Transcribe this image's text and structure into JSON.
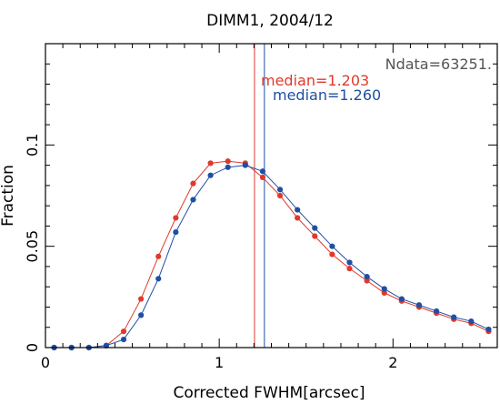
{
  "chart_data": {
    "type": "line",
    "title": "DIMM1, 2004/12",
    "xlabel": "Corrected FWHM[arcsec]",
    "ylabel": "Fraction",
    "xlim": [
      0,
      2.6
    ],
    "ylim": [
      0,
      0.15
    ],
    "xticks": [
      0,
      1,
      2
    ],
    "xtick_labels": [
      "0",
      "1",
      "2"
    ],
    "yticks": [
      0,
      0.05,
      0.1
    ],
    "ytick_labels": [
      "0",
      "0.05",
      "0.1"
    ],
    "grid": false,
    "x": [
      0.05,
      0.15,
      0.25,
      0.35,
      0.45,
      0.55,
      0.65,
      0.75,
      0.85,
      0.95,
      1.05,
      1.15,
      1.25,
      1.35,
      1.45,
      1.55,
      1.65,
      1.75,
      1.85,
      1.95,
      2.05,
      2.15,
      2.25,
      2.35,
      2.45,
      2.55
    ],
    "series": [
      {
        "color": "#e0392b",
        "values": [
          0.0,
          0.0,
          0.0,
          0.001,
          0.008,
          0.024,
          0.045,
          0.064,
          0.081,
          0.091,
          0.092,
          0.091,
          0.084,
          0.075,
          0.064,
          0.055,
          0.046,
          0.039,
          0.033,
          0.027,
          0.023,
          0.02,
          0.017,
          0.014,
          0.012,
          0.008
        ]
      },
      {
        "color": "#1f4fa3",
        "values": [
          0.0,
          0.0,
          0.0,
          0.001,
          0.004,
          0.016,
          0.034,
          0.057,
          0.073,
          0.085,
          0.089,
          0.09,
          0.087,
          0.078,
          0.068,
          0.059,
          0.05,
          0.042,
          0.035,
          0.029,
          0.024,
          0.021,
          0.018,
          0.015,
          0.013,
          0.009
        ]
      }
    ],
    "annotations": {
      "ndata": "Ndata=63251.",
      "median_red": "median=1.203",
      "median_blue": "median=1.260"
    },
    "medians": [
      {
        "value": 1.203,
        "color": "#e0392b"
      },
      {
        "value": 1.26,
        "color": "#1f4fa3"
      }
    ],
    "colors": {
      "axis": "#000000",
      "ndata_text": "#555555"
    }
  }
}
